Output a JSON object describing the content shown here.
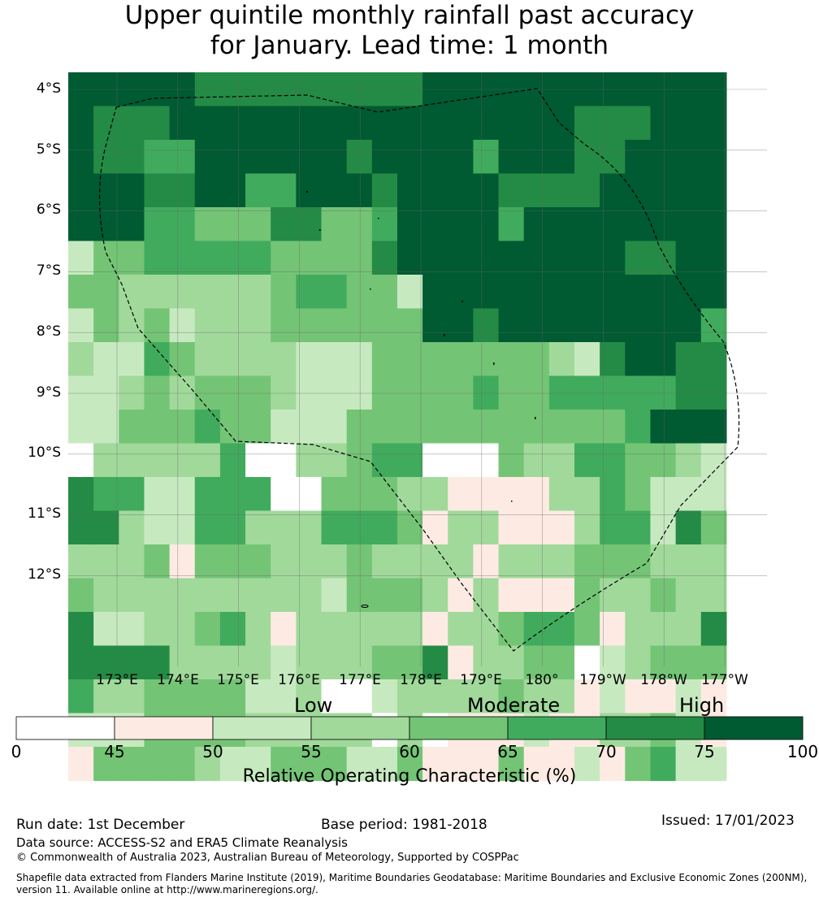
{
  "title": {
    "line1": "Upper quintile monthly rainfall past accuracy",
    "line2": "for January. Lead time: 1 month"
  },
  "map": {
    "lat_labels": [
      "4°S",
      "5°S",
      "6°S",
      "7°S",
      "8°S",
      "9°S",
      "10°S",
      "11°S",
      "12°S"
    ],
    "lon_labels": [
      "173°E",
      "174°E",
      "175°E",
      "176°E",
      "177°E",
      "178°E",
      "179°E",
      "180°",
      "179°W",
      "178°W",
      "177°W"
    ],
    "class_colors": [
      "#ffffff",
      "#fdebe3",
      "#c7e9c0",
      "#a1d99b",
      "#74c476",
      "#41ab5d",
      "#238b45",
      "#005a32"
    ],
    "grid_rows": [
      "77777666666666777777777777",
      "76667777777777777777666777",
      "76655777777677775777667777",
      "77766775577767777666677777",
      "77755444664457777577777777",
      "24455555444467777777776677",
      "44333333455442777777777777",
      "24342333444444776777777775",
      "32254333322244444443267766",
      "22343444322244445445555566",
      "22444544222444444444445777",
      "03333350033455000433554432",
      "65522555004443311113354222",
      "66322553335554133111355264",
      "33341444333433331333444333",
      "43333333332444313111433433",
      "62233453133333133455413336",
      "66663333233344613344023444",
      "53344442230023333433121121",
      "22244443333303011121133421",
      "14444322444224111411214522"
    ]
  },
  "colorbar": {
    "level_low": "Low",
    "level_moderate": "Moderate",
    "level_high": "High",
    "ticks": [
      "0",
      "45",
      "50",
      "55",
      "60",
      "65",
      "70",
      "75",
      "100"
    ],
    "label": "Relative Operating Characteristic (%)"
  },
  "footer": {
    "run_date": "Run date: 1st December",
    "base_period": "Base period: 1981-2018",
    "issued": "Issued: 17/01/2023",
    "data_source": "Data source: ACCESS-S2 and ERA5 Climate Reanalysis",
    "copyright": "© Commonwealth of Australia 2023, Australian Bureau of Meteorology, Supported by COSPPac",
    "shapefile": "Shapefile data extracted from Flanders Marine Institute (2019), Maritime Boundaries Geodatabase: Maritime Boundaries and Exclusive Economic Zones (200NM), version 11. Available online at http://www.marineregions.org/."
  }
}
